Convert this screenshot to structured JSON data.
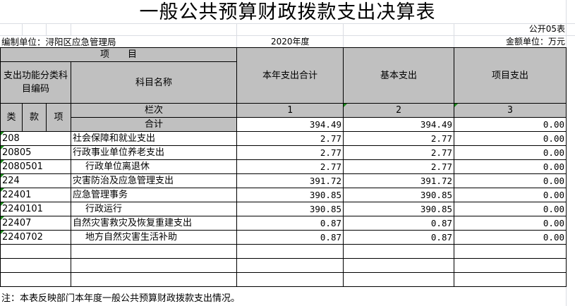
{
  "title": "一般公共预算财政拨款支出决算表",
  "form_no": "公开05表",
  "unit": "编制单位：浔阳区应急管理局",
  "year": "2020年度",
  "currency": "金额单位：万元",
  "header": {
    "item": "项　　目",
    "code": "支出功能分类科目编码",
    "name": "科目名称",
    "total": "本年支出合计",
    "basic": "基本支出",
    "project": "项目支出",
    "lei": "类",
    "kuan": "款",
    "xiang": "项",
    "lanci": "栏次",
    "heji": "合计",
    "col1": "1",
    "col2": "2",
    "col3": "3"
  },
  "totals": {
    "total": "394.49",
    "basic": "394.49",
    "project": "0.00"
  },
  "rows": [
    {
      "code": "208",
      "name": "社会保障和就业支出",
      "total": "2.77",
      "basic": "2.77",
      "project": "0.00",
      "indent": false
    },
    {
      "code": "20805",
      "name": "行政事业单位养老支出",
      "total": "2.77",
      "basic": "2.77",
      "project": "0.00",
      "indent": false
    },
    {
      "code": "2080501",
      "name": "行政单位离退休",
      "total": "2.77",
      "basic": "2.77",
      "project": "0.00",
      "indent": true
    },
    {
      "code": "224",
      "name": "灾害防治及应急管理支出",
      "total": "391.72",
      "basic": "391.72",
      "project": "0.00",
      "indent": false
    },
    {
      "code": "22401",
      "name": "应急管理事务",
      "total": "390.85",
      "basic": "390.85",
      "project": "0.00",
      "indent": false
    },
    {
      "code": "2240101",
      "name": "行政运行",
      "total": "390.85",
      "basic": "390.85",
      "project": "0.00",
      "indent": true
    },
    {
      "code": "22407",
      "name": "自然灾害救灾及恢复重建支出",
      "total": "0.87",
      "basic": "0.87",
      "project": "0.00",
      "indent": false
    },
    {
      "code": "2240702",
      "name": "地方自然灾害生活补助",
      "total": "0.87",
      "basic": "0.87",
      "project": "0.00",
      "indent": true
    }
  ],
  "note": "注：本表反映部门本年度一般公共预算财政拨款支出情况。"
}
